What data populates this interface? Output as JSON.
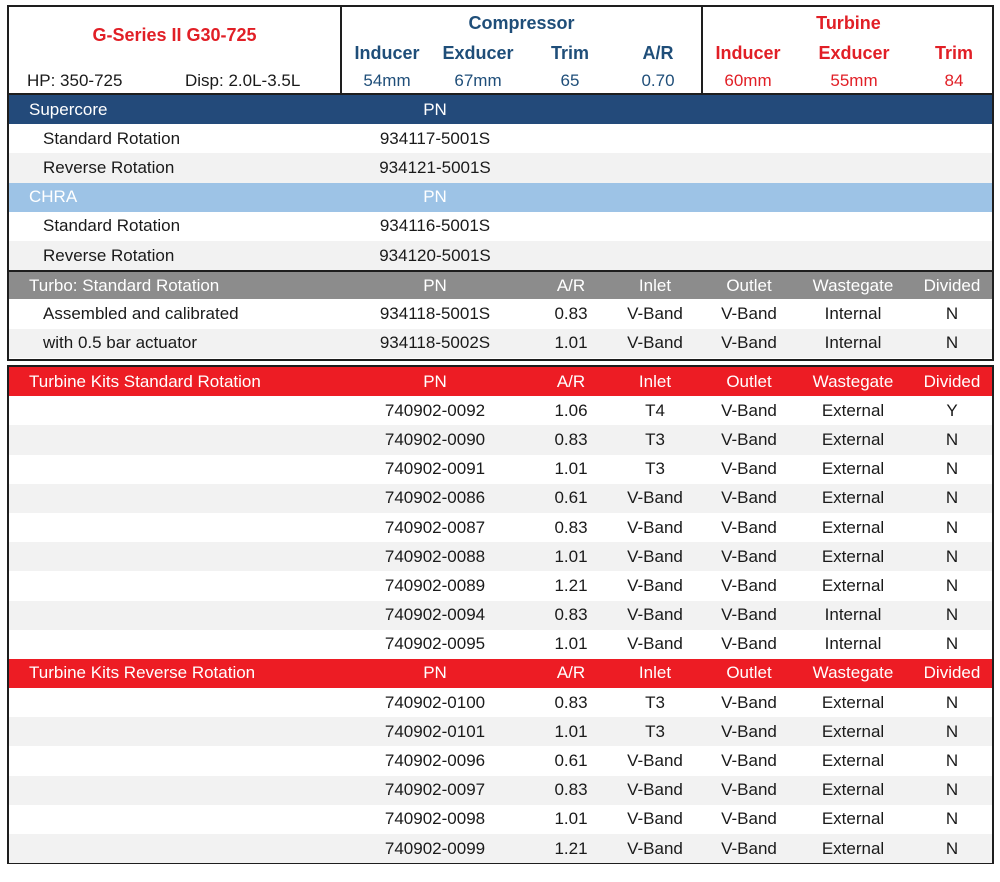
{
  "header": {
    "model": "G-Series II G30-725",
    "hp": "HP: 350-725",
    "disp": "Disp: 2.0L-3.5L",
    "compressor": {
      "title": "Compressor",
      "labels": [
        "Inducer",
        "Exducer",
        "Trim",
        "A/R"
      ],
      "values": [
        "54mm",
        "67mm",
        "65",
        "0.70"
      ]
    },
    "turbine": {
      "title": "Turbine",
      "labels": [
        "Inducer",
        "Exducer",
        "Trim"
      ],
      "values": [
        "60mm",
        "55mm",
        "84"
      ]
    }
  },
  "supercore": {
    "title": "Supercore",
    "pn_label": "PN",
    "rows": [
      {
        "name": "Standard Rotation",
        "pn": "934117-5001S"
      },
      {
        "name": "Reverse Rotation",
        "pn": "934121-5001S"
      }
    ]
  },
  "chra": {
    "title": "CHRA",
    "pn_label": "PN",
    "rows": [
      {
        "name": "Standard Rotation",
        "pn": "934116-5001S"
      },
      {
        "name": "Reverse Rotation",
        "pn": "934120-5001S"
      }
    ]
  },
  "turbo_std": {
    "title": "Turbo: Standard Rotation",
    "cols": [
      "PN",
      "A/R",
      "Inlet",
      "Outlet",
      "Wastegate",
      "Divided"
    ],
    "rows": [
      {
        "name": "Assembled and calibrated",
        "pn": "934118-5001S",
        "ar": "0.83",
        "inlet": "V-Band",
        "outlet": "V-Band",
        "wastegate": "Internal",
        "divided": "N"
      },
      {
        "name": "with 0.5 bar actuator",
        "pn": "934118-5002S",
        "ar": "1.01",
        "inlet": "V-Band",
        "outlet": "V-Band",
        "wastegate": "Internal",
        "divided": "N"
      }
    ]
  },
  "kits_std": {
    "title": "Turbine Kits Standard Rotation",
    "cols": [
      "PN",
      "A/R",
      "Inlet",
      "Outlet",
      "Wastegate",
      "Divided"
    ],
    "rows": [
      {
        "pn": "740902-0092",
        "ar": "1.06",
        "inlet": "T4",
        "outlet": "V-Band",
        "wastegate": "External",
        "divided": "Y"
      },
      {
        "pn": "740902-0090",
        "ar": "0.83",
        "inlet": "T3",
        "outlet": "V-Band",
        "wastegate": "External",
        "divided": "N"
      },
      {
        "pn": "740902-0091",
        "ar": "1.01",
        "inlet": "T3",
        "outlet": "V-Band",
        "wastegate": "External",
        "divided": "N"
      },
      {
        "pn": "740902-0086",
        "ar": "0.61",
        "inlet": "V-Band",
        "outlet": "V-Band",
        "wastegate": "External",
        "divided": "N"
      },
      {
        "pn": "740902-0087",
        "ar": "0.83",
        "inlet": "V-Band",
        "outlet": "V-Band",
        "wastegate": "External",
        "divided": "N"
      },
      {
        "pn": "740902-0088",
        "ar": "1.01",
        "inlet": "V-Band",
        "outlet": "V-Band",
        "wastegate": "External",
        "divided": "N"
      },
      {
        "pn": "740902-0089",
        "ar": "1.21",
        "inlet": "V-Band",
        "outlet": "V-Band",
        "wastegate": "External",
        "divided": "N"
      },
      {
        "pn": "740902-0094",
        "ar": "0.83",
        "inlet": "V-Band",
        "outlet": "V-Band",
        "wastegate": "Internal",
        "divided": "N"
      },
      {
        "pn": "740902-0095",
        "ar": "1.01",
        "inlet": "V-Band",
        "outlet": "V-Band",
        "wastegate": "Internal",
        "divided": "N"
      }
    ]
  },
  "kits_rev": {
    "title": "Turbine Kits Reverse Rotation",
    "cols": [
      "PN",
      "A/R",
      "Inlet",
      "Outlet",
      "Wastegate",
      "Divided"
    ],
    "rows": [
      {
        "pn": "740902-0100",
        "ar": "0.83",
        "inlet": "T3",
        "outlet": "V-Band",
        "wastegate": "External",
        "divided": "N"
      },
      {
        "pn": "740902-0101",
        "ar": "1.01",
        "inlet": "T3",
        "outlet": "V-Band",
        "wastegate": "External",
        "divided": "N"
      },
      {
        "pn": "740902-0096",
        "ar": "0.61",
        "inlet": "V-Band",
        "outlet": "V-Band",
        "wastegate": "External",
        "divided": "N"
      },
      {
        "pn": "740902-0097",
        "ar": "0.83",
        "inlet": "V-Band",
        "outlet": "V-Band",
        "wastegate": "External",
        "divided": "N"
      },
      {
        "pn": "740902-0098",
        "ar": "1.01",
        "inlet": "V-Band",
        "outlet": "V-Band",
        "wastegate": "External",
        "divided": "N"
      },
      {
        "pn": "740902-0099",
        "ar": "1.21",
        "inlet": "V-Band",
        "outlet": "V-Band",
        "wastegate": "External",
        "divided": "N"
      }
    ]
  }
}
